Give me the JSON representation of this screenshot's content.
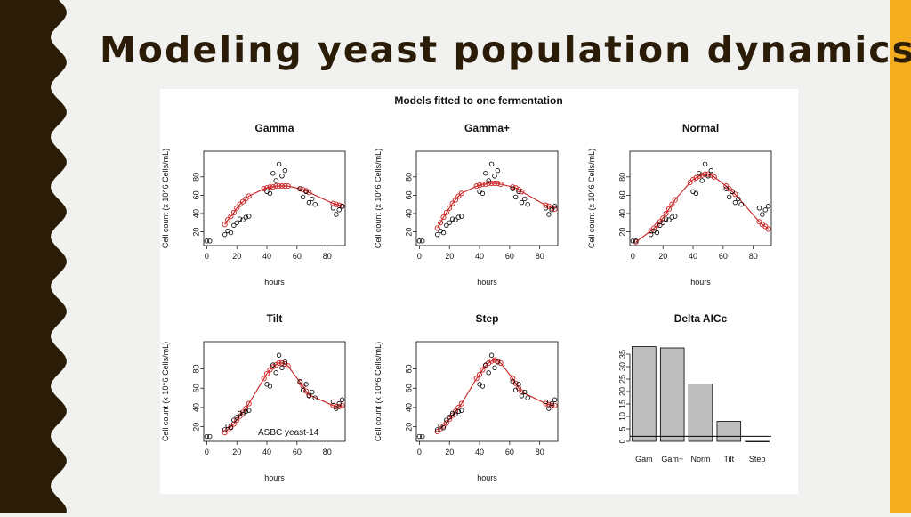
{
  "slide": {
    "title": "Modeling yeast population dynamics",
    "colors": {
      "left_band": "#2b1c08",
      "right_band": "#f5ad1f",
      "background": "#f1f1ef"
    }
  },
  "figure": {
    "title": "Models fitted to one fermentation",
    "annotation": "ASBC yeast-14"
  },
  "chart_data": [
    {
      "type": "scatter",
      "title": "Gamma",
      "xlabel": "hours",
      "ylabel": "Cell count (x 10^6 Cells/mL)",
      "xlim": [
        -2,
        92
      ],
      "ylim": [
        5,
        108
      ],
      "xticks": [
        0,
        20,
        40,
        60,
        80
      ],
      "yticks": [
        20,
        40,
        60,
        80
      ],
      "series": [
        {
          "role": "observed",
          "color": "#000000",
          "x": [
            0,
            2,
            12,
            14,
            16,
            18,
            20,
            22,
            24,
            26,
            28,
            40,
            42,
            44,
            46,
            48,
            50,
            52,
            62,
            64,
            66,
            68,
            70,
            72,
            84,
            86,
            88,
            90
          ],
          "y": [
            10,
            10,
            17,
            21,
            19,
            27,
            30,
            34,
            33,
            36,
            37,
            64,
            62,
            84,
            76,
            94,
            81,
            87,
            67,
            58,
            64,
            52,
            56,
            50,
            46,
            39,
            44,
            48
          ]
        },
        {
          "role": "fitted",
          "color": "#cc2222",
          "x": [
            12,
            14,
            16,
            18,
            20,
            22,
            24,
            26,
            28,
            38,
            40,
            42,
            44,
            46,
            48,
            50,
            52,
            54,
            62,
            64,
            66,
            68,
            84,
            86,
            88,
            90
          ],
          "y": [
            28,
            33,
            37,
            41,
            46,
            50,
            53,
            56,
            59,
            67,
            68,
            69,
            69,
            70,
            70,
            70,
            70,
            70,
            67,
            66,
            65,
            63,
            51,
            50,
            49,
            48
          ]
        }
      ]
    },
    {
      "type": "scatter",
      "title": "Gamma+",
      "xlabel": "hours",
      "ylabel": "Cell count (x 10^6 Cells/mL)",
      "xlim": [
        -2,
        92
      ],
      "ylim": [
        5,
        108
      ],
      "xticks": [
        0,
        20,
        40,
        60,
        80
      ],
      "yticks": [
        20,
        40,
        60,
        80
      ],
      "series": [
        {
          "role": "observed",
          "color": "#000000",
          "x": [
            0,
            2,
            12,
            14,
            16,
            18,
            20,
            22,
            24,
            26,
            28,
            40,
            42,
            44,
            46,
            48,
            50,
            52,
            62,
            64,
            66,
            68,
            70,
            72,
            84,
            86,
            88,
            90
          ],
          "y": [
            10,
            10,
            17,
            21,
            19,
            27,
            30,
            34,
            33,
            36,
            37,
            64,
            62,
            84,
            76,
            94,
            81,
            87,
            67,
            58,
            64,
            52,
            56,
            50,
            46,
            39,
            44,
            48
          ]
        },
        {
          "role": "fitted",
          "color": "#cc2222",
          "x": [
            12,
            14,
            16,
            18,
            20,
            22,
            24,
            26,
            28,
            38,
            40,
            42,
            44,
            46,
            48,
            50,
            52,
            54,
            62,
            64,
            66,
            68,
            84,
            86,
            88,
            90
          ],
          "y": [
            24,
            30,
            36,
            41,
            46,
            51,
            55,
            59,
            62,
            70,
            71,
            72,
            72,
            73,
            73,
            73,
            73,
            72,
            69,
            68,
            66,
            64,
            49,
            48,
            46,
            45
          ]
        }
      ]
    },
    {
      "type": "scatter",
      "title": "Normal",
      "xlabel": "hours",
      "ylabel": "Cell count (x 10^6 Cells/mL)",
      "xlim": [
        -2,
        92
      ],
      "ylim": [
        5,
        108
      ],
      "xticks": [
        0,
        20,
        40,
        60,
        80
      ],
      "yticks": [
        20,
        40,
        60,
        80
      ],
      "series": [
        {
          "role": "observed",
          "color": "#000000",
          "x": [
            0,
            2,
            12,
            14,
            16,
            18,
            20,
            22,
            24,
            26,
            28,
            40,
            42,
            44,
            46,
            48,
            50,
            52,
            62,
            64,
            66,
            68,
            70,
            72,
            84,
            86,
            88,
            90
          ],
          "y": [
            10,
            10,
            17,
            21,
            19,
            27,
            30,
            34,
            33,
            36,
            37,
            64,
            62,
            84,
            76,
            94,
            81,
            87,
            67,
            58,
            64,
            52,
            56,
            50,
            46,
            39,
            44,
            48
          ]
        },
        {
          "role": "fitted",
          "color": "#cc2222",
          "x": [
            2,
            12,
            14,
            16,
            18,
            20,
            22,
            24,
            26,
            28,
            38,
            40,
            42,
            44,
            46,
            48,
            50,
            52,
            54,
            62,
            64,
            66,
            68,
            84,
            86,
            88,
            90
          ],
          "y": [
            9,
            21,
            24,
            27,
            31,
            35,
            40,
            45,
            50,
            55,
            74,
            77,
            79,
            81,
            82,
            83,
            83,
            82,
            80,
            70,
            67,
            64,
            61,
            31,
            28,
            26,
            23
          ]
        }
      ]
    },
    {
      "type": "scatter",
      "title": "Tilt",
      "xlabel": "hours",
      "ylabel": "Cell count (x 10^6 Cells/mL)",
      "xlim": [
        -2,
        92
      ],
      "ylim": [
        5,
        108
      ],
      "xticks": [
        0,
        20,
        40,
        60,
        80
      ],
      "yticks": [
        20,
        40,
        60,
        80
      ],
      "series": [
        {
          "role": "observed",
          "color": "#000000",
          "x": [
            0,
            2,
            12,
            14,
            16,
            18,
            20,
            22,
            24,
            26,
            28,
            40,
            42,
            44,
            46,
            48,
            50,
            52,
            62,
            64,
            66,
            68,
            70,
            72,
            84,
            86,
            88,
            90
          ],
          "y": [
            10,
            10,
            17,
            21,
            19,
            27,
            30,
            34,
            33,
            36,
            37,
            64,
            62,
            84,
            76,
            94,
            81,
            87,
            67,
            58,
            64,
            52,
            56,
            50,
            46,
            39,
            44,
            48
          ]
        },
        {
          "role": "fitted",
          "color": "#cc2222",
          "x": [
            12,
            14,
            16,
            18,
            20,
            22,
            24,
            26,
            28,
            38,
            40,
            42,
            44,
            46,
            48,
            50,
            52,
            54,
            62,
            64,
            66,
            68,
            84,
            86,
            88,
            90
          ],
          "y": [
            14,
            17,
            20,
            23,
            27,
            31,
            35,
            39,
            44,
            70,
            75,
            79,
            82,
            84,
            86,
            86,
            85,
            83,
            66,
            62,
            57,
            53,
            42,
            41,
            41,
            42
          ]
        }
      ]
    },
    {
      "type": "scatter",
      "title": "Step",
      "xlabel": "hours",
      "ylabel": "Cell count (x 10^6 Cells/mL)",
      "xlim": [
        -2,
        92
      ],
      "ylim": [
        5,
        108
      ],
      "xticks": [
        0,
        20,
        40,
        60,
        80
      ],
      "yticks": [
        20,
        40,
        60,
        80
      ],
      "series": [
        {
          "role": "observed",
          "color": "#000000",
          "x": [
            0,
            2,
            12,
            14,
            16,
            18,
            20,
            22,
            24,
            26,
            28,
            40,
            42,
            44,
            46,
            48,
            50,
            52,
            62,
            64,
            66,
            68,
            70,
            72,
            84,
            86,
            88,
            90
          ],
          "y": [
            10,
            10,
            17,
            21,
            19,
            27,
            30,
            34,
            33,
            36,
            37,
            64,
            62,
            84,
            76,
            94,
            81,
            87,
            67,
            58,
            64,
            52,
            56,
            50,
            46,
            39,
            44,
            48
          ]
        },
        {
          "role": "fitted",
          "color": "#cc2222",
          "x": [
            12,
            14,
            16,
            18,
            20,
            22,
            24,
            26,
            28,
            38,
            40,
            42,
            44,
            46,
            48,
            50,
            52,
            54,
            62,
            64,
            66,
            68,
            84,
            86,
            88,
            90
          ],
          "y": [
            15,
            18,
            21,
            24,
            28,
            32,
            36,
            40,
            44,
            70,
            74,
            79,
            83,
            86,
            88,
            89,
            88,
            86,
            70,
            65,
            60,
            56,
            44,
            43,
            42,
            42
          ]
        }
      ]
    },
    {
      "type": "bar",
      "title": "Delta AICc",
      "xlabel": "",
      "ylabel": "",
      "categories": [
        "Gam",
        "Gam+",
        "Norm",
        "Tilt",
        "Step"
      ],
      "values": [
        38,
        37.5,
        23,
        8,
        0
      ],
      "ylim": [
        0,
        40
      ],
      "yticks": [
        0,
        5,
        10,
        15,
        20,
        25,
        30,
        35
      ],
      "reference_line": 2,
      "bar_color": "#bebebe"
    }
  ]
}
